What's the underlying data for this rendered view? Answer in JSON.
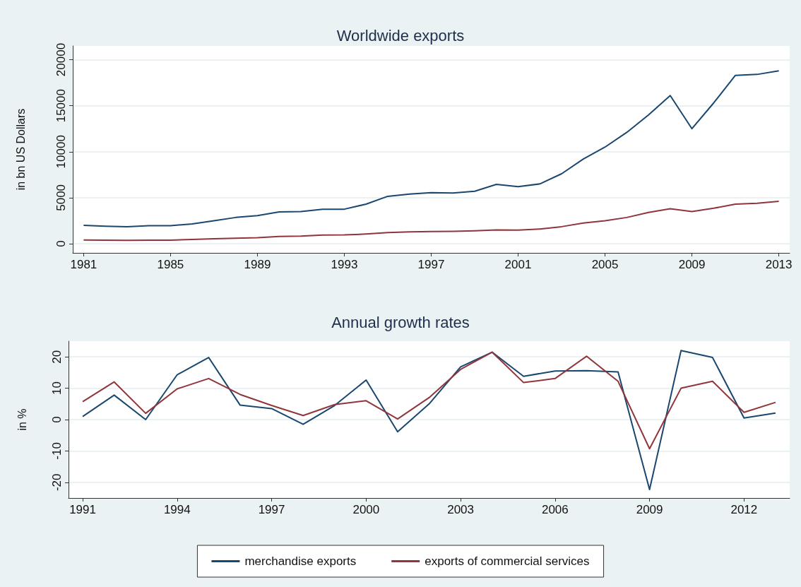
{
  "chart_data": [
    {
      "type": "line",
      "title": "Worldwide exports",
      "ylabel": "in bn US Dollars",
      "x": [
        1981,
        1982,
        1983,
        1984,
        1985,
        1986,
        1987,
        1988,
        1989,
        1990,
        1991,
        1992,
        1993,
        1994,
        1995,
        1996,
        1997,
        1998,
        1999,
        2000,
        2001,
        2002,
        2003,
        2004,
        2005,
        2006,
        2007,
        2008,
        2009,
        2010,
        2011,
        2012,
        2013
      ],
      "series": [
        {
          "color": "#1a476f",
          "values": [
            2000,
            1900,
            1850,
            1950,
            1950,
            2150,
            2500,
            2850,
            3050,
            3450,
            3500,
            3750,
            3750,
            4300,
            5150,
            5400,
            5550,
            5500,
            5700,
            6450,
            6200,
            6500,
            7600,
            9200,
            10500,
            12100,
            14000,
            16100,
            12500,
            15300,
            18300,
            18400,
            18800
          ]
        },
        {
          "color": "#90353b",
          "values": [
            400,
            380,
            370,
            380,
            390,
            450,
            530,
            600,
            660,
            790,
            830,
            940,
            950,
            1050,
            1200,
            1280,
            1330,
            1340,
            1400,
            1500,
            1480,
            1600,
            1850,
            2250,
            2500,
            2850,
            3400,
            3800,
            3500,
            3850,
            4300,
            4400,
            4600
          ]
        }
      ],
      "xlim": [
        1980.5,
        2013.5
      ],
      "xticks": [
        1981,
        1985,
        1989,
        1993,
        1997,
        2001,
        2005,
        2009,
        2013
      ],
      "ylim": [
        -1000,
        21500
      ],
      "yticks": [
        0,
        5000,
        10000,
        15000,
        20000
      ],
      "grid": "y",
      "legend": false,
      "marker": "none",
      "line_style": "solid"
    },
    {
      "type": "line",
      "title": "Annual growth rates",
      "ylabel": "in %",
      "x": [
        1991,
        1992,
        1993,
        1994,
        1995,
        1996,
        1997,
        1998,
        1999,
        2000,
        2001,
        2002,
        2003,
        2004,
        2005,
        2006,
        2007,
        2008,
        2009,
        2010,
        2011,
        2012,
        2013
      ],
      "series": [
        {
          "name": "merchandise exports",
          "color": "#1a476f",
          "values": [
            1,
            7.8,
            0,
            14.3,
            19.8,
            4.6,
            3.5,
            -1.5,
            4.5,
            12.6,
            -3.9,
            5,
            16.8,
            21.5,
            13.8,
            15.5,
            15.6,
            15.2,
            -22.3,
            22,
            19.8,
            0.5,
            2.1
          ]
        },
        {
          "name": "exports of commercial services",
          "color": "#90353b",
          "values": [
            5.7,
            12,
            2,
            9.8,
            13.1,
            8,
            4.5,
            1.3,
            4.8,
            6,
            0.2,
            7,
            16,
            21.5,
            11.8,
            13.1,
            20.2,
            12.2,
            -9.3,
            10,
            12.2,
            2.3,
            5.5
          ]
        }
      ],
      "xlim": [
        1990.55,
        2013.45
      ],
      "xticks": [
        1991,
        1994,
        1997,
        2000,
        2003,
        2006,
        2009,
        2012
      ],
      "ylim": [
        -25,
        25
      ],
      "yticks": [
        -20,
        -10,
        0,
        10,
        20
      ],
      "grid": "y",
      "legend": "bottom",
      "marker": "none",
      "line_style": "solid"
    }
  ]
}
